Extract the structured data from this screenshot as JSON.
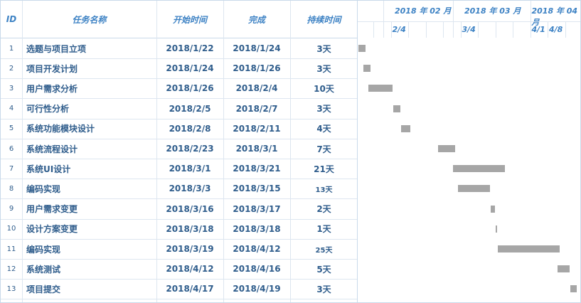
{
  "headers": {
    "id": "ID",
    "name": "任务名称",
    "start": "开始时间",
    "end": "完成",
    "duration": "持续时间"
  },
  "timeline": {
    "months": [
      "2018 年 02 月",
      "2018 年 03 月",
      "2018 年 04 月"
    ],
    "weeks": [
      "2/4",
      "3/4",
      "4/1",
      "4/8"
    ]
  },
  "tasks": [
    {
      "id": "1",
      "name": "选题与项目立项",
      "start": "2018/1/22",
      "end": "2018/1/24",
      "duration": "3天"
    },
    {
      "id": "2",
      "name": "项目开发计划",
      "start": "2018/1/24",
      "end": "2018/1/26",
      "duration": "3天"
    },
    {
      "id": "3",
      "name": "用户需求分析",
      "start": "2018/1/26",
      "end": "2018/2/4",
      "duration": "10天"
    },
    {
      "id": "4",
      "name": "可行性分析",
      "start": "2018/2/5",
      "end": "2018/2/7",
      "duration": "3天"
    },
    {
      "id": "5",
      "name": "系统功能模块设计",
      "start": "2018/2/8",
      "end": "2018/2/11",
      "duration": "4天"
    },
    {
      "id": "6",
      "name": "系统流程设计",
      "start": "2018/2/23",
      "end": "2018/3/1",
      "duration": "7天"
    },
    {
      "id": "7",
      "name": "系统UI设计",
      "start": "2018/3/1",
      "end": "2018/3/21",
      "duration": "21天"
    },
    {
      "id": "8",
      "name": "编码实现",
      "start": "2018/3/3",
      "end": "2018/3/15",
      "duration": "13天"
    },
    {
      "id": "9",
      "name": "用户需求变更",
      "start": "2018/3/16",
      "end": "2018/3/17",
      "duration": "2天"
    },
    {
      "id": "10",
      "name": "设计方案变更",
      "start": "2018/3/18",
      "end": "2018/3/18",
      "duration": "1天"
    },
    {
      "id": "11",
      "name": "编码实现",
      "start": "2018/3/19",
      "end": "2018/4/12",
      "duration": "25天"
    },
    {
      "id": "12",
      "name": "系统测试",
      "start": "2018/4/12",
      "end": "2018/4/16",
      "duration": "5天"
    },
    {
      "id": "13",
      "name": "项目提交",
      "start": "2018/4/17",
      "end": "2018/4/19",
      "duration": "3天"
    }
  ],
  "colors": {
    "header_text": "#3d82c4",
    "body_text": "#2f5d8c",
    "bar": "#a6a6a6",
    "grid": "#dde6f0"
  }
}
